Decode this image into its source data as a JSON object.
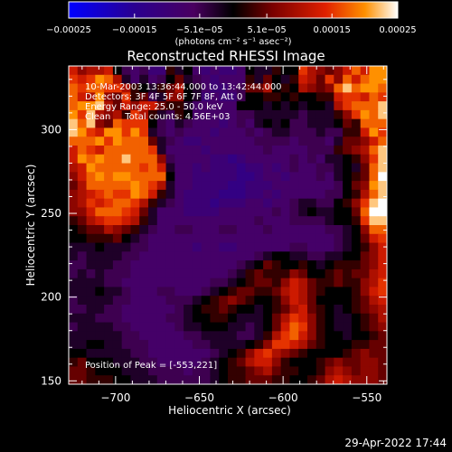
{
  "chart_data": {
    "type": "heatmap",
    "title": "Reconstructed RHESSI Image",
    "xlabel": "Heliocentric X (arcsec)",
    "ylabel": "Heliocentric Y (arcsec)",
    "xlim": [
      -728,
      -538
    ],
    "ylim": [
      148,
      338
    ],
    "xticks": [
      -700,
      -650,
      -600,
      -550
    ],
    "xtick_labels": [
      "−700",
      "−650",
      "−600",
      "−550"
    ],
    "yticks": [
      150,
      200,
      250,
      300
    ],
    "ytick_labels": [
      "150",
      "200",
      "250",
      "300"
    ],
    "colorbar": {
      "ticks": [
        -0.00025,
        -0.00015,
        -5.1e-05,
        5.1e-05,
        0.00015,
        0.00025
      ],
      "tick_labels": [
        "−0.00025",
        "−0.00015",
        "−5.1e−05",
        "5.1e−05",
        "0.00015",
        "0.00025"
      ],
      "range": [
        -0.00025,
        0.00025
      ],
      "unit_label": "(photons cm⁻² s⁻¹ asec⁻²)"
    },
    "annotations": {
      "time_range": "10-Mar-2003 13:36:44.000 to 13:42:44.000",
      "detectors": "Detectors: 3F 4F 5F 6F 7F 8F, Att 0",
      "energy_range": "Energy Range: 25.0 - 50.0 keV",
      "clean": "Clean     Total counts: 4.56E+03",
      "peak": "Position of Peak = [-553,221]"
    },
    "peak": {
      "x": -553,
      "y": 221
    },
    "values": [
      [
        0.75,
        0.65,
        0.7,
        0.7,
        0.75,
        0.5,
        0.4,
        0.35,
        0.4,
        0.3,
        0.3,
        0.55,
        0.45,
        0.5,
        0.35,
        0.3,
        0.35,
        0.3,
        0.3,
        0.35,
        0.5,
        0.45,
        0.45,
        0.55,
        0.5,
        0.5,
        0.8,
        0.7,
        0.65,
        0.6,
        0.65,
        0.75,
        0.85,
        0.75,
        0.9,
        0.9
      ],
      [
        0.8,
        0.75,
        0.8,
        0.9,
        0.85,
        0.7,
        0.45,
        0.35,
        0.45,
        0.35,
        0.4,
        0.5,
        0.6,
        0.45,
        0.4,
        0.35,
        0.3,
        0.35,
        0.35,
        0.35,
        0.55,
        0.45,
        0.6,
        0.5,
        0.45,
        0.55,
        0.75,
        0.7,
        0.6,
        0.8,
        0.65,
        0.85,
        0.75,
        0.85,
        0.9,
        0.9
      ],
      [
        0.85,
        0.8,
        0.85,
        0.85,
        0.8,
        0.8,
        0.7,
        0.55,
        0.5,
        0.45,
        0.55,
        0.6,
        0.7,
        0.5,
        0.45,
        0.35,
        0.3,
        0.3,
        0.35,
        0.4,
        0.6,
        0.6,
        0.7,
        0.5,
        0.55,
        0.5,
        0.7,
        0.65,
        0.6,
        0.65,
        0.85,
        0.95,
        0.85,
        0.9,
        0.9,
        0.85
      ],
      [
        0.85,
        0.75,
        0.7,
        0.9,
        0.65,
        0.6,
        0.8,
        0.55,
        0.6,
        0.4,
        0.45,
        0.65,
        0.65,
        0.5,
        0.45,
        0.3,
        0.35,
        0.3,
        0.3,
        0.4,
        0.5,
        0.5,
        0.55,
        0.55,
        0.5,
        0.55,
        0.5,
        0.5,
        0.55,
        0.55,
        0.75,
        0.8,
        0.8,
        0.75,
        0.85,
        0.8
      ],
      [
        0.85,
        0.9,
        0.9,
        0.95,
        0.7,
        0.6,
        0.75,
        0.65,
        0.75,
        0.75,
        0.6,
        0.55,
        0.55,
        0.45,
        0.35,
        0.35,
        0.35,
        0.35,
        0.35,
        0.5,
        0.5,
        0.5,
        0.45,
        0.5,
        0.45,
        0.5,
        0.45,
        0.5,
        0.5,
        0.45,
        0.7,
        0.8,
        0.85,
        0.85,
        0.85,
        0.95
      ],
      [
        0.9,
        0.8,
        0.95,
        0.7,
        0.65,
        0.7,
        0.55,
        0.8,
        0.7,
        0.55,
        0.45,
        0.4,
        0.55,
        0.5,
        0.35,
        0.35,
        0.35,
        0.35,
        0.35,
        0.4,
        0.4,
        0.45,
        0.45,
        0.45,
        0.45,
        0.45,
        0.4,
        0.45,
        0.45,
        0.45,
        0.55,
        0.65,
        0.8,
        0.9,
        0.85,
        0.95
      ],
      [
        0.95,
        0.85,
        0.95,
        0.65,
        0.6,
        0.85,
        0.8,
        0.8,
        0.8,
        0.5,
        0.4,
        0.35,
        0.45,
        0.4,
        0.35,
        0.35,
        0.35,
        0.3,
        0.35,
        0.4,
        0.35,
        0.45,
        0.5,
        0.45,
        0.5,
        0.4,
        0.4,
        0.45,
        0.45,
        0.45,
        0.5,
        0.6,
        0.55,
        0.85,
        0.85,
        0.85
      ],
      [
        0.95,
        0.9,
        0.8,
        0.75,
        0.9,
        0.9,
        0.8,
        0.9,
        0.8,
        0.45,
        0.4,
        0.35,
        0.4,
        0.35,
        0.35,
        0.35,
        0.3,
        0.35,
        0.35,
        0.35,
        0.4,
        0.35,
        0.4,
        0.45,
        0.45,
        0.4,
        0.4,
        0.4,
        0.45,
        0.4,
        0.4,
        0.55,
        0.55,
        0.75,
        0.9,
        0.8
      ],
      [
        0.85,
        0.85,
        0.85,
        0.9,
        0.8,
        0.9,
        0.85,
        0.85,
        0.85,
        0.6,
        0.45,
        0.4,
        0.35,
        0.3,
        0.3,
        0.35,
        0.35,
        0.35,
        0.35,
        0.35,
        0.35,
        0.4,
        0.4,
        0.4,
        0.4,
        0.35,
        0.4,
        0.4,
        0.4,
        0.35,
        0.45,
        0.6,
        0.6,
        0.65,
        0.75,
        0.85
      ],
      [
        0.75,
        0.85,
        0.8,
        0.75,
        0.85,
        0.85,
        0.85,
        0.85,
        0.85,
        0.8,
        0.45,
        0.35,
        0.35,
        0.35,
        0.35,
        0.3,
        0.35,
        0.35,
        0.35,
        0.35,
        0.35,
        0.35,
        0.4,
        0.35,
        0.35,
        0.35,
        0.35,
        0.4,
        0.4,
        0.4,
        0.55,
        0.6,
        0.65,
        0.7,
        0.85,
        0.95
      ],
      [
        0.75,
        0.9,
        0.85,
        0.9,
        0.85,
        0.85,
        0.95,
        0.85,
        0.85,
        0.85,
        0.65,
        0.4,
        0.35,
        0.35,
        0.35,
        0.35,
        0.3,
        0.3,
        0.25,
        0.3,
        0.35,
        0.35,
        0.35,
        0.35,
        0.35,
        0.4,
        0.35,
        0.4,
        0.35,
        0.45,
        0.45,
        0.5,
        0.55,
        0.65,
        0.8,
        0.95
      ],
      [
        0.7,
        0.75,
        0.9,
        0.85,
        0.85,
        0.85,
        0.85,
        0.85,
        0.8,
        0.85,
        0.75,
        0.45,
        0.35,
        0.35,
        0.3,
        0.35,
        0.3,
        0.3,
        0.3,
        0.25,
        0.3,
        0.3,
        0.35,
        0.3,
        0.35,
        0.4,
        0.35,
        0.35,
        0.4,
        0.4,
        0.45,
        0.5,
        0.45,
        0.6,
        0.85,
        0.95
      ],
      [
        0.65,
        0.75,
        0.85,
        0.9,
        0.85,
        0.9,
        0.9,
        0.85,
        0.85,
        0.85,
        0.85,
        0.5,
        0.35,
        0.35,
        0.3,
        0.3,
        0.3,
        0.3,
        0.3,
        0.25,
        0.25,
        0.3,
        0.35,
        0.35,
        0.3,
        0.35,
        0.35,
        0.35,
        0.4,
        0.35,
        0.45,
        0.5,
        0.55,
        0.6,
        0.85,
        1.0
      ],
      [
        0.6,
        0.7,
        0.85,
        0.85,
        0.85,
        0.85,
        0.85,
        0.9,
        0.85,
        0.8,
        0.7,
        0.45,
        0.35,
        0.35,
        0.3,
        0.3,
        0.3,
        0.3,
        0.25,
        0.25,
        0.3,
        0.3,
        0.3,
        0.35,
        0.35,
        0.35,
        0.35,
        0.35,
        0.35,
        0.35,
        0.4,
        0.5,
        0.6,
        0.65,
        0.9,
        0.95
      ],
      [
        0.65,
        0.7,
        0.75,
        0.8,
        0.85,
        0.8,
        0.8,
        0.9,
        0.85,
        0.75,
        0.55,
        0.45,
        0.35,
        0.3,
        0.3,
        0.3,
        0.3,
        0.25,
        0.25,
        0.25,
        0.3,
        0.3,
        0.35,
        0.3,
        0.35,
        0.35,
        0.35,
        0.35,
        0.35,
        0.4,
        0.4,
        0.5,
        0.55,
        0.7,
        0.85,
        0.95
      ],
      [
        0.65,
        0.7,
        0.8,
        0.75,
        0.8,
        0.85,
        0.85,
        0.8,
        0.7,
        0.55,
        0.45,
        0.4,
        0.35,
        0.3,
        0.3,
        0.3,
        0.25,
        0.3,
        0.3,
        0.3,
        0.35,
        0.35,
        0.3,
        0.35,
        0.35,
        0.4,
        0.45,
        0.45,
        0.4,
        0.4,
        0.5,
        0.55,
        0.65,
        0.8,
        0.95,
        1.0
      ],
      [
        0.65,
        0.65,
        0.75,
        0.85,
        0.85,
        0.85,
        0.8,
        0.75,
        0.6,
        0.45,
        0.35,
        0.35,
        0.35,
        0.3,
        0.3,
        0.3,
        0.3,
        0.35,
        0.35,
        0.35,
        0.35,
        0.35,
        0.35,
        0.4,
        0.35,
        0.4,
        0.45,
        0.5,
        0.45,
        0.45,
        0.5,
        0.5,
        0.6,
        0.85,
        1.0,
        1.0
      ],
      [
        0.55,
        0.6,
        0.7,
        0.75,
        0.8,
        0.8,
        0.75,
        0.7,
        0.55,
        0.45,
        0.35,
        0.35,
        0.35,
        0.35,
        0.35,
        0.35,
        0.35,
        0.35,
        0.35,
        0.35,
        0.35,
        0.4,
        0.35,
        0.35,
        0.35,
        0.4,
        0.4,
        0.4,
        0.4,
        0.45,
        0.5,
        0.5,
        0.55,
        0.8,
        0.95,
        0.95
      ],
      [
        0.5,
        0.55,
        0.6,
        0.6,
        0.7,
        0.65,
        0.6,
        0.55,
        0.45,
        0.4,
        0.35,
        0.35,
        0.4,
        0.4,
        0.35,
        0.35,
        0.35,
        0.4,
        0.4,
        0.35,
        0.35,
        0.35,
        0.4,
        0.35,
        0.35,
        0.35,
        0.35,
        0.35,
        0.35,
        0.4,
        0.4,
        0.45,
        0.5,
        0.65,
        0.85,
        0.85
      ],
      [
        0.5,
        0.5,
        0.55,
        0.55,
        0.55,
        0.6,
        0.5,
        0.45,
        0.4,
        0.35,
        0.35,
        0.35,
        0.35,
        0.35,
        0.35,
        0.35,
        0.35,
        0.35,
        0.35,
        0.35,
        0.35,
        0.35,
        0.35,
        0.35,
        0.35,
        0.35,
        0.35,
        0.35,
        0.35,
        0.35,
        0.4,
        0.45,
        0.5,
        0.6,
        0.75,
        0.8
      ],
      [
        0.45,
        0.45,
        0.45,
        0.5,
        0.45,
        0.45,
        0.45,
        0.4,
        0.4,
        0.35,
        0.35,
        0.35,
        0.35,
        0.35,
        0.3,
        0.35,
        0.35,
        0.3,
        0.3,
        0.35,
        0.35,
        0.35,
        0.35,
        0.35,
        0.35,
        0.4,
        0.4,
        0.35,
        0.35,
        0.35,
        0.4,
        0.45,
        0.5,
        0.55,
        0.65,
        0.75
      ],
      [
        0.45,
        0.4,
        0.45,
        0.45,
        0.45,
        0.45,
        0.4,
        0.4,
        0.35,
        0.35,
        0.35,
        0.35,
        0.35,
        0.35,
        0.35,
        0.35,
        0.35,
        0.35,
        0.35,
        0.35,
        0.35,
        0.4,
        0.45,
        0.5,
        0.5,
        0.45,
        0.45,
        0.4,
        0.4,
        0.45,
        0.45,
        0.5,
        0.5,
        0.6,
        0.65,
        0.75
      ],
      [
        0.4,
        0.4,
        0.45,
        0.45,
        0.45,
        0.4,
        0.4,
        0.35,
        0.35,
        0.35,
        0.35,
        0.35,
        0.35,
        0.35,
        0.35,
        0.35,
        0.35,
        0.35,
        0.35,
        0.4,
        0.45,
        0.5,
        0.6,
        0.55,
        0.5,
        0.5,
        0.55,
        0.5,
        0.45,
        0.5,
        0.55,
        0.55,
        0.55,
        0.6,
        0.65,
        0.75
      ],
      [
        0.4,
        0.45,
        0.4,
        0.45,
        0.4,
        0.4,
        0.4,
        0.35,
        0.35,
        0.35,
        0.35,
        0.35,
        0.35,
        0.35,
        0.35,
        0.35,
        0.35,
        0.35,
        0.4,
        0.45,
        0.55,
        0.6,
        0.55,
        0.55,
        0.55,
        0.65,
        0.6,
        0.5,
        0.5,
        0.55,
        0.6,
        0.55,
        0.6,
        0.6,
        0.7,
        0.75
      ],
      [
        0.45,
        0.45,
        0.45,
        0.45,
        0.4,
        0.4,
        0.35,
        0.35,
        0.35,
        0.35,
        0.35,
        0.35,
        0.35,
        0.35,
        0.35,
        0.35,
        0.4,
        0.4,
        0.45,
        0.5,
        0.55,
        0.6,
        0.6,
        0.55,
        0.65,
        0.75,
        0.7,
        0.6,
        0.55,
        0.55,
        0.6,
        0.55,
        0.55,
        0.65,
        0.7,
        0.8
      ],
      [
        0.45,
        0.45,
        0.45,
        0.5,
        0.45,
        0.45,
        0.4,
        0.35,
        0.35,
        0.35,
        0.4,
        0.4,
        0.35,
        0.35,
        0.35,
        0.4,
        0.45,
        0.5,
        0.55,
        0.6,
        0.6,
        0.55,
        0.55,
        0.6,
        0.7,
        0.75,
        0.7,
        0.6,
        0.55,
        0.5,
        0.5,
        0.5,
        0.55,
        0.65,
        0.75,
        0.8
      ],
      [
        0.4,
        0.45,
        0.45,
        0.45,
        0.45,
        0.4,
        0.4,
        0.35,
        0.35,
        0.35,
        0.35,
        0.4,
        0.4,
        0.4,
        0.45,
        0.5,
        0.55,
        0.6,
        0.65,
        0.6,
        0.55,
        0.5,
        0.5,
        0.55,
        0.65,
        0.75,
        0.7,
        0.6,
        0.5,
        0.5,
        0.5,
        0.5,
        0.55,
        0.6,
        0.7,
        0.75
      ],
      [
        0.4,
        0.4,
        0.45,
        0.45,
        0.4,
        0.4,
        0.35,
        0.35,
        0.35,
        0.35,
        0.35,
        0.35,
        0.4,
        0.45,
        0.5,
        0.55,
        0.55,
        0.6,
        0.55,
        0.5,
        0.5,
        0.45,
        0.5,
        0.55,
        0.6,
        0.7,
        0.75,
        0.6,
        0.55,
        0.5,
        0.45,
        0.5,
        0.55,
        0.6,
        0.65,
        0.7
      ],
      [
        0.45,
        0.45,
        0.45,
        0.4,
        0.4,
        0.4,
        0.35,
        0.35,
        0.35,
        0.35,
        0.35,
        0.4,
        0.4,
        0.45,
        0.5,
        0.5,
        0.55,
        0.55,
        0.5,
        0.45,
        0.45,
        0.45,
        0.5,
        0.6,
        0.7,
        0.8,
        0.75,
        0.65,
        0.55,
        0.5,
        0.45,
        0.45,
        0.5,
        0.55,
        0.6,
        0.7
      ],
      [
        0.4,
        0.45,
        0.45,
        0.45,
        0.45,
        0.4,
        0.4,
        0.35,
        0.35,
        0.35,
        0.35,
        0.35,
        0.4,
        0.45,
        0.45,
        0.5,
        0.5,
        0.5,
        0.45,
        0.45,
        0.4,
        0.45,
        0.5,
        0.6,
        0.75,
        0.85,
        0.8,
        0.65,
        0.55,
        0.5,
        0.45,
        0.45,
        0.5,
        0.55,
        0.6,
        0.65
      ],
      [
        0.45,
        0.45,
        0.45,
        0.45,
        0.45,
        0.45,
        0.4,
        0.4,
        0.35,
        0.35,
        0.35,
        0.35,
        0.35,
        0.4,
        0.4,
        0.45,
        0.45,
        0.45,
        0.45,
        0.4,
        0.4,
        0.45,
        0.55,
        0.7,
        0.8,
        0.85,
        0.75,
        0.65,
        0.55,
        0.5,
        0.5,
        0.45,
        0.5,
        0.5,
        0.55,
        0.6
      ],
      [
        0.45,
        0.45,
        0.5,
        0.5,
        0.45,
        0.45,
        0.4,
        0.4,
        0.4,
        0.35,
        0.35,
        0.35,
        0.35,
        0.35,
        0.4,
        0.4,
        0.45,
        0.45,
        0.45,
        0.45,
        0.5,
        0.55,
        0.65,
        0.8,
        0.8,
        0.75,
        0.7,
        0.6,
        0.55,
        0.5,
        0.5,
        0.5,
        0.55,
        0.55,
        0.6,
        0.6
      ],
      [
        0.5,
        0.5,
        0.45,
        0.45,
        0.45,
        0.45,
        0.45,
        0.4,
        0.4,
        0.35,
        0.35,
        0.35,
        0.35,
        0.35,
        0.35,
        0.35,
        0.4,
        0.45,
        0.5,
        0.55,
        0.65,
        0.75,
        0.8,
        0.7,
        0.65,
        0.6,
        0.55,
        0.5,
        0.5,
        0.5,
        0.5,
        0.55,
        0.6,
        0.65,
        0.6,
        0.6
      ],
      [
        0.55,
        0.6,
        0.5,
        0.5,
        0.5,
        0.45,
        0.45,
        0.45,
        0.4,
        0.4,
        0.35,
        0.35,
        0.35,
        0.35,
        0.35,
        0.4,
        0.45,
        0.5,
        0.55,
        0.6,
        0.7,
        0.75,
        0.75,
        0.65,
        0.55,
        0.5,
        0.5,
        0.5,
        0.55,
        0.6,
        0.65,
        0.6,
        0.6,
        0.65,
        0.65,
        0.6
      ],
      [
        0.6,
        0.6,
        0.55,
        0.5,
        0.5,
        0.5,
        0.45,
        0.45,
        0.45,
        0.4,
        0.4,
        0.4,
        0.4,
        0.35,
        0.4,
        0.4,
        0.45,
        0.5,
        0.55,
        0.55,
        0.6,
        0.65,
        0.7,
        0.6,
        0.55,
        0.55,
        0.5,
        0.5,
        0.55,
        0.65,
        0.7,
        0.65,
        0.6,
        0.65,
        0.65,
        0.6
      ],
      [
        0.6,
        0.6,
        0.55,
        0.55,
        0.55,
        0.5,
        0.5,
        0.45,
        0.45,
        0.45,
        0.4,
        0.4,
        0.4,
        0.4,
        0.4,
        0.4,
        0.45,
        0.5,
        0.55,
        0.55,
        0.6,
        0.6,
        0.6,
        0.55,
        0.55,
        0.5,
        0.5,
        0.55,
        0.6,
        0.7,
        0.75,
        0.7,
        0.65,
        0.65,
        0.65,
        0.6
      ]
    ]
  },
  "footer": {
    "timestamp": "29-Apr-2022 17:44"
  }
}
